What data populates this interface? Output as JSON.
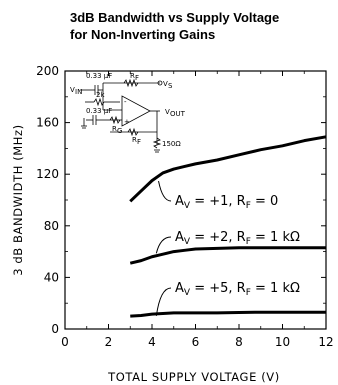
{
  "chart_data": {
    "type": "line",
    "title": "3dB Bandwidth vs Supply Voltage",
    "subtitle": "for Non-Inverting Gains",
    "xlabel": "TOTAL SUPPLY VOLTAGE (V)",
    "ylabel": "3 dB BANDWIDTH (MHz)",
    "xlim": [
      0,
      12
    ],
    "ylim": [
      0,
      200
    ],
    "xticks": [
      "0",
      "2",
      "4",
      "6",
      "8",
      "10",
      "12"
    ],
    "yticks": [
      "0",
      "40",
      "80",
      "120",
      "160",
      "200"
    ],
    "grid": false,
    "series": [
      {
        "name": "AV = +1, RF = 0",
        "x": [
          3,
          3.5,
          4,
          4.5,
          5,
          5.5,
          6,
          7,
          8,
          9,
          10,
          11,
          12
        ],
        "y": [
          99,
          107,
          115,
          121,
          124,
          126,
          128,
          131,
          135,
          139,
          142,
          146,
          149
        ]
      },
      {
        "name": "AV = +2, RF = 1 kΩ",
        "x": [
          3,
          3.5,
          4,
          4.5,
          5,
          5.5,
          6,
          7,
          8,
          9,
          10,
          11,
          12
        ],
        "y": [
          51,
          53,
          56,
          58,
          60,
          61,
          62,
          62.5,
          63,
          63,
          63,
          63,
          63
        ]
      },
      {
        "name": "AV = +5, RF = 1 kΩ",
        "x": [
          3,
          3.5,
          4,
          4.5,
          5,
          6,
          7,
          8,
          9,
          10,
          11,
          12
        ],
        "y": [
          10,
          10.5,
          11.5,
          12,
          12.5,
          12.5,
          12.5,
          12.8,
          13,
          13,
          13,
          13
        ]
      }
    ],
    "annotations": [
      {
        "lhs": "A",
        "sub": "V",
        "rhs": " = +1, R",
        "sub2": "F",
        "tail": " = 0",
        "x": 4.4,
        "y": 115
      },
      {
        "lhs": "A",
        "sub": "V",
        "rhs": " = +2, R",
        "sub2": "F",
        "tail": " = 1 kΩ",
        "x": 4.4,
        "y": 60
      },
      {
        "lhs": "A",
        "sub": "V",
        "rhs": " = +5, R",
        "sub2": "F",
        "tail": " = 1 kΩ",
        "x": 4.4,
        "y": 12
      }
    ],
    "inset_schematic": {
      "labels": [
        "0.33 μF",
        "R",
        "F",
        "V",
        "S",
        "V",
        "IN",
        "2k",
        "0.33 μF",
        "R",
        "G",
        "V",
        "OUT",
        "R",
        "F",
        "150Ω",
        "-",
        "+"
      ]
    }
  }
}
